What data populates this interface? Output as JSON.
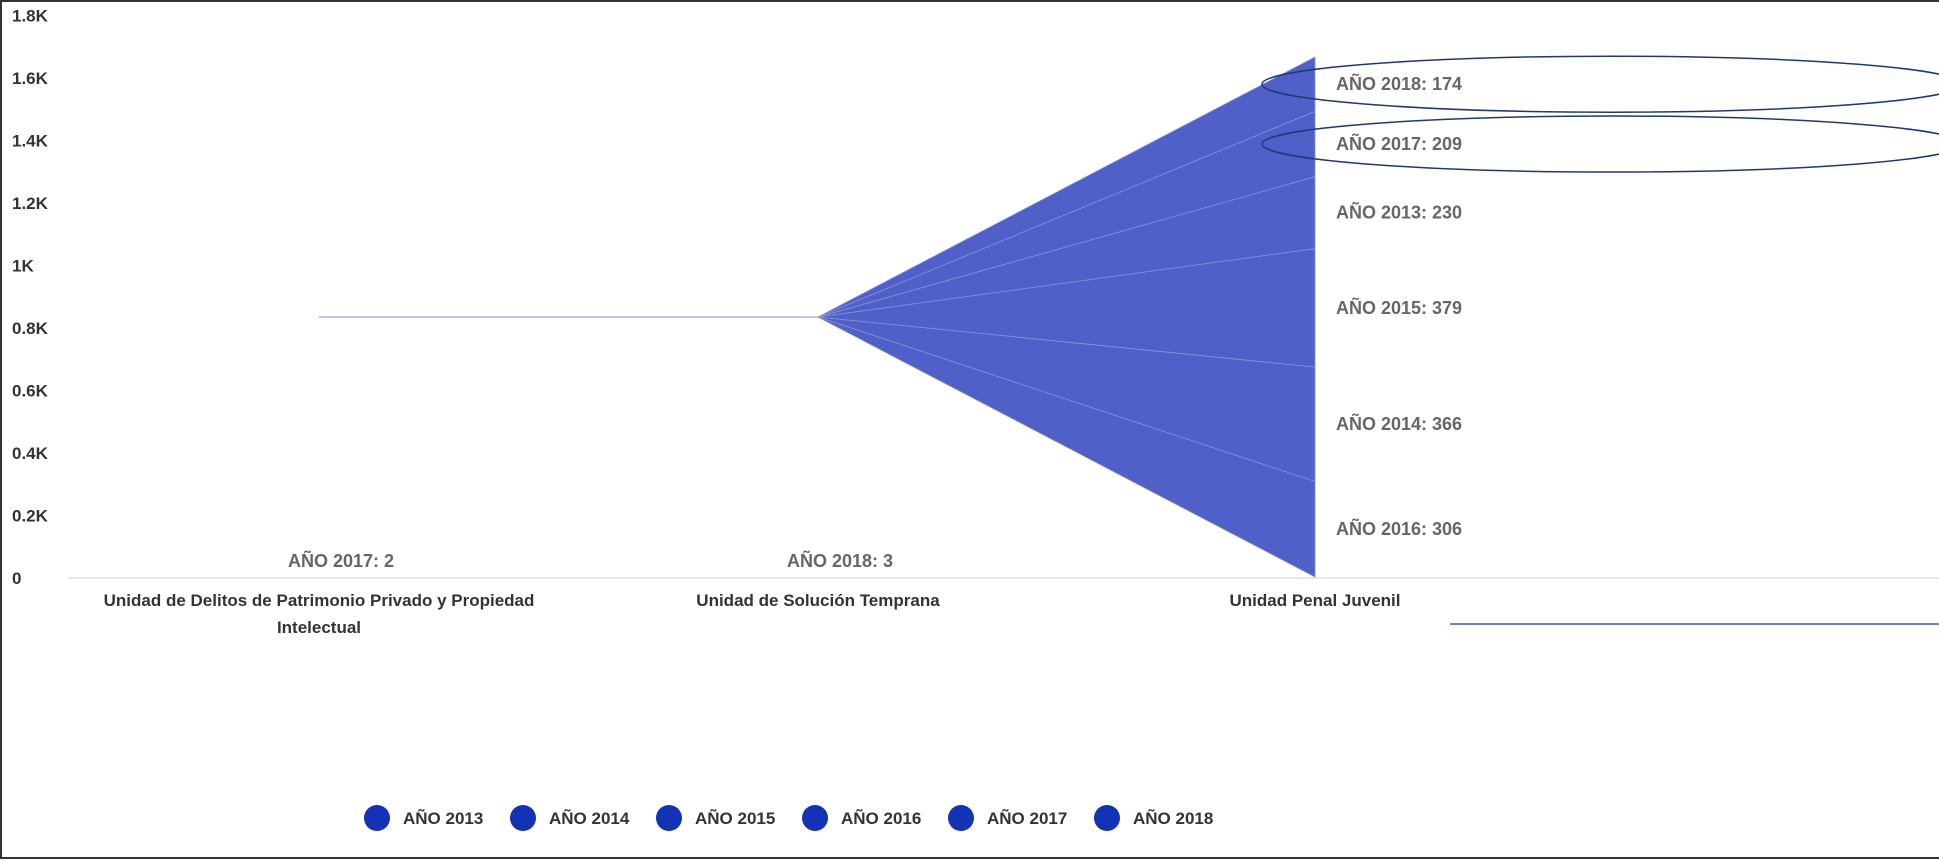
{
  "chart_data": {
    "type": "area",
    "stacking": "normal",
    "categories": [
      "Unidad de Delitos de Patrimonio Privado y Propiedad Intelectual",
      "Unidad de Solución Temprana",
      "Unidad Penal Juvenil"
    ],
    "category_label_lines": [
      [
        "Unidad de Delitos de Patrimonio Privado y Propiedad",
        "Intelectual"
      ],
      [
        "Unidad de Solución Temprana"
      ],
      [
        "Unidad Penal Juvenil"
      ]
    ],
    "yticks": [
      0,
      200,
      400,
      600,
      800,
      1000,
      1200,
      1400,
      1600,
      1800
    ],
    "ytick_labels": [
      "0",
      "0.2K",
      "0.4K",
      "0.6K",
      "0.8K",
      "1K",
      "1.2K",
      "1.4K",
      "1.6K",
      "1.8K"
    ],
    "ylim": [
      0,
      1800
    ],
    "grid": false,
    "legend_position": "bottom",
    "series_color": "#5060c8",
    "legend_marker_color": "#1432b4",
    "annotation_color": "#1f3a73",
    "series": [
      {
        "name": "AÑO 2016",
        "values": [
          null,
          null,
          306
        ],
        "label": "AÑO 2016: 306"
      },
      {
        "name": "AÑO 2014",
        "values": [
          null,
          null,
          366
        ],
        "label": "AÑO 2014: 366"
      },
      {
        "name": "AÑO 2015",
        "values": [
          null,
          null,
          379
        ],
        "label": "AÑO 2015: 379"
      },
      {
        "name": "AÑO 2013",
        "values": [
          null,
          null,
          230
        ],
        "label": "AÑO 2013: 230"
      },
      {
        "name": "AÑO 2017",
        "values": [
          2,
          null,
          209
        ],
        "label": "AÑO 2017: 209"
      },
      {
        "name": "AÑO 2018",
        "values": [
          null,
          3,
          174
        ],
        "label": "AÑO 2018: 174"
      }
    ],
    "point_labels": [
      {
        "text": "AÑO 2017: 2"
      },
      {
        "text": "AÑO 2018: 3"
      }
    ],
    "legend": [
      "AÑO 2013",
      "AÑO 2014",
      "AÑO 2015",
      "AÑO 2016",
      "AÑO 2017",
      "AÑO 2018"
    ]
  }
}
